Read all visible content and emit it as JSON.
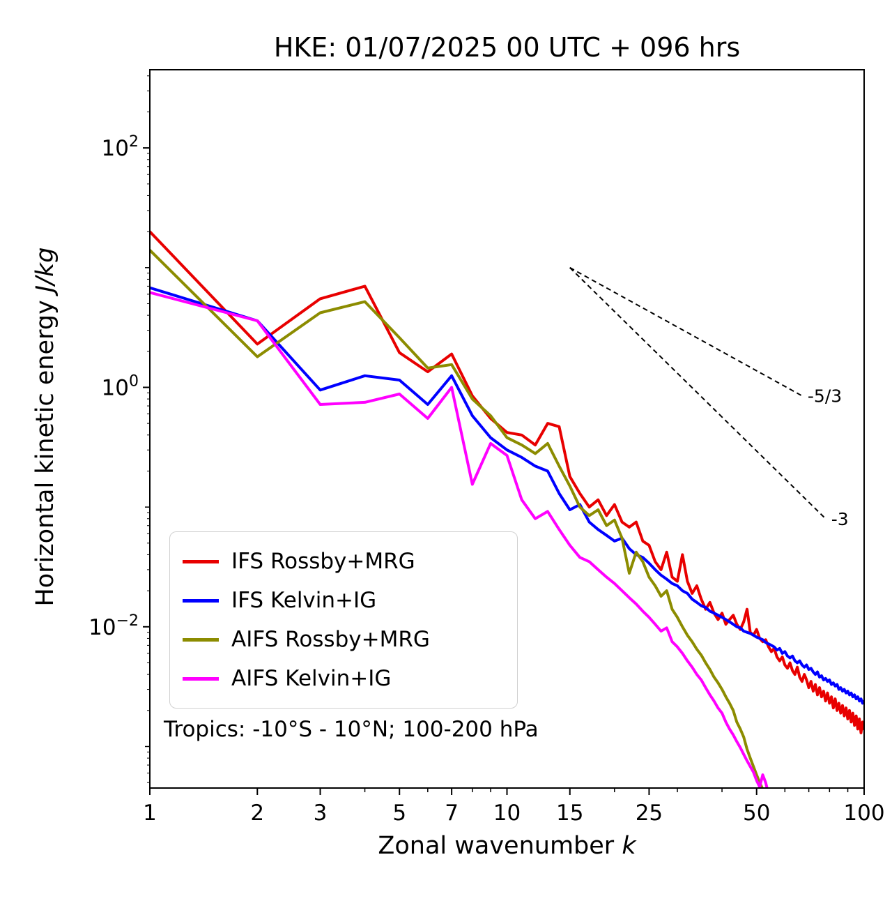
{
  "chart_data": {
    "type": "line",
    "title": "HKE: 01/07/2025 00 UTC + 096 hrs",
    "xlabel_text": "Zonal wavenumber",
    "xlabel_var": "k",
    "ylabel_text": "Horizontal kinetic energy",
    "ylabel_units": "J/kg",
    "xscale": "log",
    "yscale": "log",
    "xlim": [
      1,
      100
    ],
    "ylim": [
      0.00045,
      450
    ],
    "grid": false,
    "legend_position": "lower left",
    "xticks": [
      1,
      2,
      3,
      5,
      7,
      10,
      15,
      25,
      50,
      100
    ],
    "yticks": [
      {
        "value": 100,
        "exp": "2"
      },
      {
        "value": 1,
        "exp": "0"
      },
      {
        "value": 0.01,
        "exp": "−2"
      }
    ],
    "annotation": "Tropics: -10°S - 10°N; 100-200 hPa",
    "reference_lines": [
      {
        "label": "-5/3",
        "x1": 15,
        "y1": 10,
        "x2": 67,
        "y2": 0.85
      },
      {
        "label": "-3",
        "x1": 15,
        "y1": 10,
        "x2": 78,
        "y2": 0.08
      }
    ],
    "series": [
      {
        "name": "IFS Rossby+MRG",
        "color": "#e80000",
        "x": [
          1,
          2,
          3,
          4,
          5,
          6,
          7,
          8,
          9,
          10,
          11,
          12,
          13,
          14,
          15,
          16,
          17,
          18,
          19,
          20,
          21,
          22,
          23,
          24,
          25,
          26,
          27,
          28,
          29,
          30,
          31,
          32,
          33,
          34,
          35,
          36,
          37,
          38,
          39,
          40,
          41,
          42,
          43,
          44,
          45,
          46,
          47,
          48,
          49,
          50,
          51,
          52,
          53,
          54,
          55,
          56,
          57,
          58,
          59,
          60,
          61,
          62,
          63,
          64,
          65,
          66,
          67,
          68,
          69,
          70,
          71,
          72,
          73,
          74,
          75,
          76,
          77,
          78,
          79,
          80,
          81,
          82,
          83,
          84,
          85,
          86,
          87,
          88,
          89,
          90,
          91,
          92,
          93,
          94,
          95,
          96,
          97,
          98,
          99,
          100
        ],
        "y": [
          20,
          2.3,
          5.5,
          7.0,
          1.95,
          1.35,
          1.9,
          0.85,
          0.55,
          0.42,
          0.4,
          0.33,
          0.5,
          0.47,
          0.18,
          0.13,
          0.1,
          0.115,
          0.085,
          0.105,
          0.075,
          0.068,
          0.075,
          0.052,
          0.048,
          0.035,
          0.03,
          0.042,
          0.026,
          0.024,
          0.04,
          0.024,
          0.019,
          0.022,
          0.017,
          0.014,
          0.016,
          0.013,
          0.0115,
          0.013,
          0.0105,
          0.0115,
          0.0125,
          0.0105,
          0.0095,
          0.011,
          0.014,
          0.009,
          0.0085,
          0.0095,
          0.008,
          0.0075,
          0.0078,
          0.0068,
          0.0062,
          0.0066,
          0.0056,
          0.0052,
          0.0056,
          0.0048,
          0.0045,
          0.005,
          0.0043,
          0.004,
          0.0046,
          0.0038,
          0.0035,
          0.004,
          0.0036,
          0.0031,
          0.0035,
          0.0029,
          0.0033,
          0.0027,
          0.0031,
          0.0026,
          0.0029,
          0.0024,
          0.0028,
          0.0023,
          0.0026,
          0.0021,
          0.0025,
          0.002,
          0.0023,
          0.0019,
          0.0022,
          0.0018,
          0.0021,
          0.0017,
          0.002,
          0.0016,
          0.0019,
          0.0015,
          0.0018,
          0.0014,
          0.0017,
          0.0013,
          0.0016,
          0.0014
        ]
      },
      {
        "name": "IFS Kelvin+IG",
        "color": "#0000ff",
        "x": [
          1,
          2,
          3,
          4,
          5,
          6,
          7,
          8,
          9,
          10,
          11,
          12,
          13,
          14,
          15,
          16,
          17,
          18,
          19,
          20,
          21,
          22,
          23,
          24,
          25,
          26,
          27,
          28,
          29,
          30,
          31,
          32,
          33,
          34,
          35,
          36,
          37,
          38,
          39,
          40,
          41,
          42,
          43,
          44,
          45,
          46,
          47,
          48,
          49,
          50,
          51,
          52,
          53,
          54,
          55,
          56,
          57,
          58,
          59,
          60,
          61,
          62,
          63,
          64,
          65,
          66,
          67,
          68,
          69,
          70,
          71,
          72,
          73,
          74,
          75,
          76,
          77,
          78,
          79,
          80,
          81,
          82,
          83,
          84,
          85,
          86,
          87,
          88,
          89,
          90,
          91,
          92,
          93,
          94,
          95,
          96,
          97,
          98,
          99,
          100
        ],
        "y": [
          6.8,
          3.6,
          0.95,
          1.25,
          1.15,
          0.72,
          1.25,
          0.58,
          0.38,
          0.3,
          0.26,
          0.22,
          0.2,
          0.13,
          0.095,
          0.105,
          0.075,
          0.065,
          0.058,
          0.052,
          0.055,
          0.045,
          0.04,
          0.038,
          0.034,
          0.03,
          0.027,
          0.025,
          0.023,
          0.022,
          0.02,
          0.019,
          0.017,
          0.016,
          0.015,
          0.0145,
          0.0135,
          0.013,
          0.0125,
          0.012,
          0.0115,
          0.011,
          0.0105,
          0.01,
          0.0098,
          0.0092,
          0.009,
          0.0088,
          0.0085,
          0.0082,
          0.008,
          0.0078,
          0.0074,
          0.0072,
          0.007,
          0.0068,
          0.0064,
          0.0066,
          0.006,
          0.0062,
          0.0057,
          0.0055,
          0.0057,
          0.0052,
          0.005,
          0.0052,
          0.0048,
          0.0046,
          0.0048,
          0.0044,
          0.0045,
          0.0042,
          0.004,
          0.0042,
          0.0038,
          0.0039,
          0.0036,
          0.0037,
          0.0035,
          0.0036,
          0.0033,
          0.0034,
          0.0032,
          0.0033,
          0.003,
          0.0031,
          0.0029,
          0.003,
          0.0028,
          0.0029,
          0.0027,
          0.0028,
          0.0026,
          0.0027,
          0.0025,
          0.0026,
          0.0024,
          0.0025,
          0.0023,
          0.0024
        ]
      },
      {
        "name": "AIFS Rossby+MRG",
        "color": "#8c8c00",
        "x": [
          1,
          2,
          3,
          4,
          5,
          6,
          7,
          8,
          9,
          10,
          11,
          12,
          13,
          14,
          15,
          16,
          17,
          18,
          19,
          20,
          21,
          22,
          23,
          24,
          25,
          26,
          27,
          28,
          29,
          30,
          31,
          32,
          33,
          34,
          35,
          36,
          37,
          38,
          39,
          40,
          41,
          42,
          43,
          44,
          45,
          46,
          47,
          48,
          49,
          50,
          51,
          52,
          53
        ],
        "y": [
          14,
          1.8,
          4.2,
          5.2,
          2.6,
          1.45,
          1.55,
          0.8,
          0.58,
          0.38,
          0.33,
          0.28,
          0.34,
          0.22,
          0.15,
          0.1,
          0.085,
          0.095,
          0.07,
          0.078,
          0.055,
          0.028,
          0.042,
          0.035,
          0.026,
          0.022,
          0.018,
          0.02,
          0.014,
          0.012,
          0.01,
          0.0085,
          0.0075,
          0.0065,
          0.0058,
          0.005,
          0.0044,
          0.0038,
          0.0034,
          0.003,
          0.0026,
          0.0023,
          0.002,
          0.0016,
          0.0014,
          0.0012,
          0.00095,
          0.0008,
          0.00068,
          0.00058,
          0.0005,
          0.00044,
          0.0004
        ]
      },
      {
        "name": "AIFS Kelvin+IG",
        "color": "#ff00ff",
        "x": [
          1,
          2,
          3,
          4,
          5,
          6,
          7,
          8,
          9,
          10,
          11,
          12,
          13,
          14,
          15,
          16,
          17,
          18,
          19,
          20,
          21,
          22,
          23,
          24,
          25,
          26,
          27,
          28,
          29,
          30,
          31,
          32,
          33,
          34,
          35,
          36,
          37,
          38,
          39,
          40,
          41,
          42,
          43,
          44,
          45,
          46,
          47,
          48,
          49,
          50,
          51,
          52,
          53,
          54
        ],
        "y": [
          6.2,
          3.6,
          0.72,
          0.75,
          0.88,
          0.55,
          1.0,
          0.155,
          0.34,
          0.27,
          0.115,
          0.08,
          0.092,
          0.065,
          0.048,
          0.038,
          0.035,
          0.03,
          0.026,
          0.023,
          0.02,
          0.0175,
          0.0155,
          0.0135,
          0.012,
          0.0105,
          0.0092,
          0.0098,
          0.0075,
          0.0068,
          0.006,
          0.0052,
          0.0046,
          0.004,
          0.0036,
          0.0031,
          0.0027,
          0.0024,
          0.0021,
          0.0019,
          0.0016,
          0.0014,
          0.00125,
          0.0011,
          0.00098,
          0.00086,
          0.00076,
          0.00068,
          0.00061,
          0.00052,
          0.00046,
          0.00058,
          0.0005,
          0.0004
        ]
      }
    ]
  }
}
